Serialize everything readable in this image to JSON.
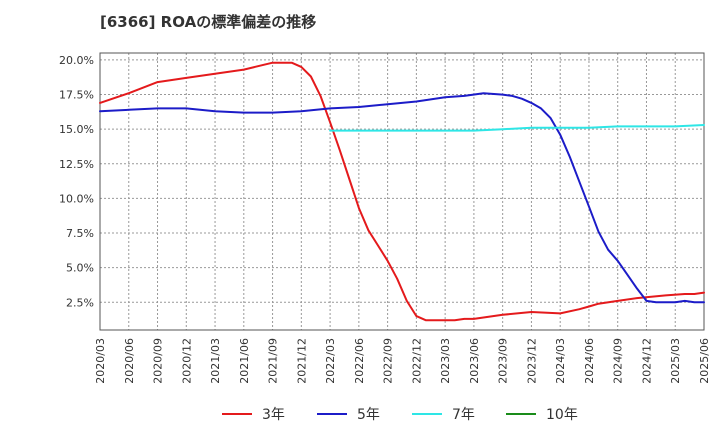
{
  "chart_data": {
    "type": "line",
    "title": "[6366]  ROAの標準偏差の推移",
    "xlabel": "",
    "ylabel": "",
    "ylim": [
      0.5,
      20.5
    ],
    "y_ticks": [
      2.5,
      5.0,
      7.5,
      10.0,
      12.5,
      15.0,
      17.5,
      20.0
    ],
    "y_tick_labels": [
      "2.5%",
      "5.0%",
      "7.5%",
      "10.0%",
      "12.5%",
      "15.0%",
      "17.5%",
      "20.0%"
    ],
    "x_ticks": [
      "2020/03",
      "2020/06",
      "2020/09",
      "2020/12",
      "2021/03",
      "2021/06",
      "2021/09",
      "2021/12",
      "2022/03",
      "2022/06",
      "2022/09",
      "2022/12",
      "2023/03",
      "2023/06",
      "2023/09",
      "2023/12",
      "2024/03",
      "2024/06",
      "2024/09",
      "2024/12",
      "2025/03",
      "2025/06"
    ],
    "x_range_months": [
      0,
      63
    ],
    "grid": true,
    "legend_position": "bottom",
    "series": [
      {
        "name": "3年",
        "color": "#e41a1c",
        "x": [
          0,
          3,
          6,
          9,
          12,
          15,
          18,
          20,
          21,
          22,
          23,
          24,
          25,
          26,
          27,
          28,
          29,
          30,
          31,
          32,
          33,
          34,
          35,
          36,
          37,
          38,
          39,
          40,
          42,
          45,
          48,
          50,
          51,
          52,
          54,
          56,
          59,
          61,
          62,
          63
        ],
        "values": [
          16.9,
          17.6,
          18.4,
          18.7,
          19.0,
          19.3,
          19.8,
          19.8,
          19.5,
          18.8,
          17.4,
          15.5,
          13.5,
          11.4,
          9.3,
          7.7,
          6.6,
          5.5,
          4.2,
          2.6,
          1.5,
          1.2,
          1.2,
          1.2,
          1.2,
          1.3,
          1.3,
          1.4,
          1.6,
          1.8,
          1.7,
          2.0,
          2.2,
          2.4,
          2.6,
          2.8,
          3.0,
          3.1,
          3.1,
          3.2
        ]
      },
      {
        "name": "5年",
        "color": "#1c1cc8",
        "x": [
          0,
          3,
          6,
          9,
          12,
          15,
          18,
          21,
          24,
          27,
          30,
          33,
          36,
          38,
          40,
          42,
          43,
          44,
          45,
          46,
          47,
          48,
          49,
          50,
          51,
          52,
          53,
          54,
          55,
          56,
          57,
          58,
          60,
          61,
          62,
          63
        ],
        "values": [
          16.3,
          16.4,
          16.5,
          16.5,
          16.3,
          16.2,
          16.2,
          16.3,
          16.5,
          16.6,
          16.8,
          17.0,
          17.3,
          17.4,
          17.6,
          17.5,
          17.4,
          17.2,
          16.9,
          16.5,
          15.8,
          14.6,
          13.0,
          11.2,
          9.4,
          7.6,
          6.3,
          5.5,
          4.5,
          3.5,
          2.6,
          2.5,
          2.5,
          2.6,
          2.5,
          2.5
        ]
      },
      {
        "name": "7年",
        "color": "#2ee6e6",
        "x": [
          24,
          27,
          30,
          33,
          36,
          39,
          42,
          45,
          48,
          51,
          54,
          57,
          60,
          63
        ],
        "values": [
          14.9,
          14.9,
          14.9,
          14.9,
          14.9,
          14.9,
          15.0,
          15.1,
          15.1,
          15.1,
          15.2,
          15.2,
          15.2,
          15.3
        ]
      },
      {
        "name": "10年",
        "color": "#1a8c1a",
        "x": [],
        "values": []
      }
    ]
  }
}
